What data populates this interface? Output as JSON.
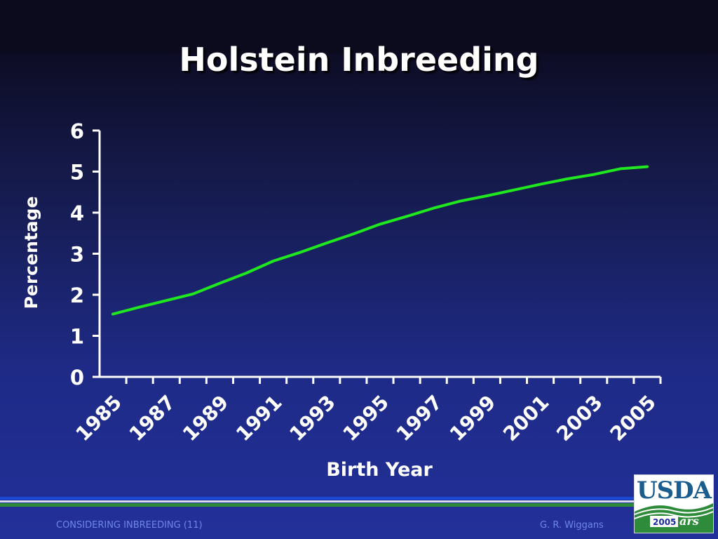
{
  "slide": {
    "title": "Holstein Inbreeding",
    "footer_left": "CONSIDERING INBREEDING (11)",
    "footer_right": "G. R. Wiggans",
    "logo_text": "USDA",
    "logo_year": "2005",
    "logo_mark": "ars",
    "colors": {
      "line": "#1fe81f",
      "text": "#ffffff",
      "footer_text": "#6f86e6",
      "stripe_blue": "#1a49d6",
      "stripe_green": "#2e8b3a"
    }
  },
  "chart_data": {
    "type": "line",
    "title": "Holstein Inbreeding",
    "xlabel": "Birth Year",
    "ylabel": "Percentage",
    "x": [
      1985,
      1986,
      1987,
      1988,
      1989,
      1990,
      1991,
      1992,
      1993,
      1994,
      1995,
      1996,
      1997,
      1998,
      1999,
      2000,
      2001,
      2002,
      2003,
      2004,
      2005
    ],
    "y": [
      1.53,
      1.7,
      1.86,
      2.02,
      2.28,
      2.53,
      2.82,
      3.03,
      3.26,
      3.48,
      3.72,
      3.91,
      4.11,
      4.28,
      4.41,
      4.55,
      4.69,
      4.82,
      4.93,
      5.07,
      5.12
    ],
    "xticks": [
      "1985",
      "1987",
      "1989",
      "1991",
      "1993",
      "1995",
      "1997",
      "1999",
      "2001",
      "2003",
      "2005"
    ],
    "yticks": [
      "0",
      "1",
      "2",
      "3",
      "4",
      "5",
      "6"
    ],
    "ylim": [
      0,
      6
    ],
    "grid": false,
    "legend": "none"
  }
}
